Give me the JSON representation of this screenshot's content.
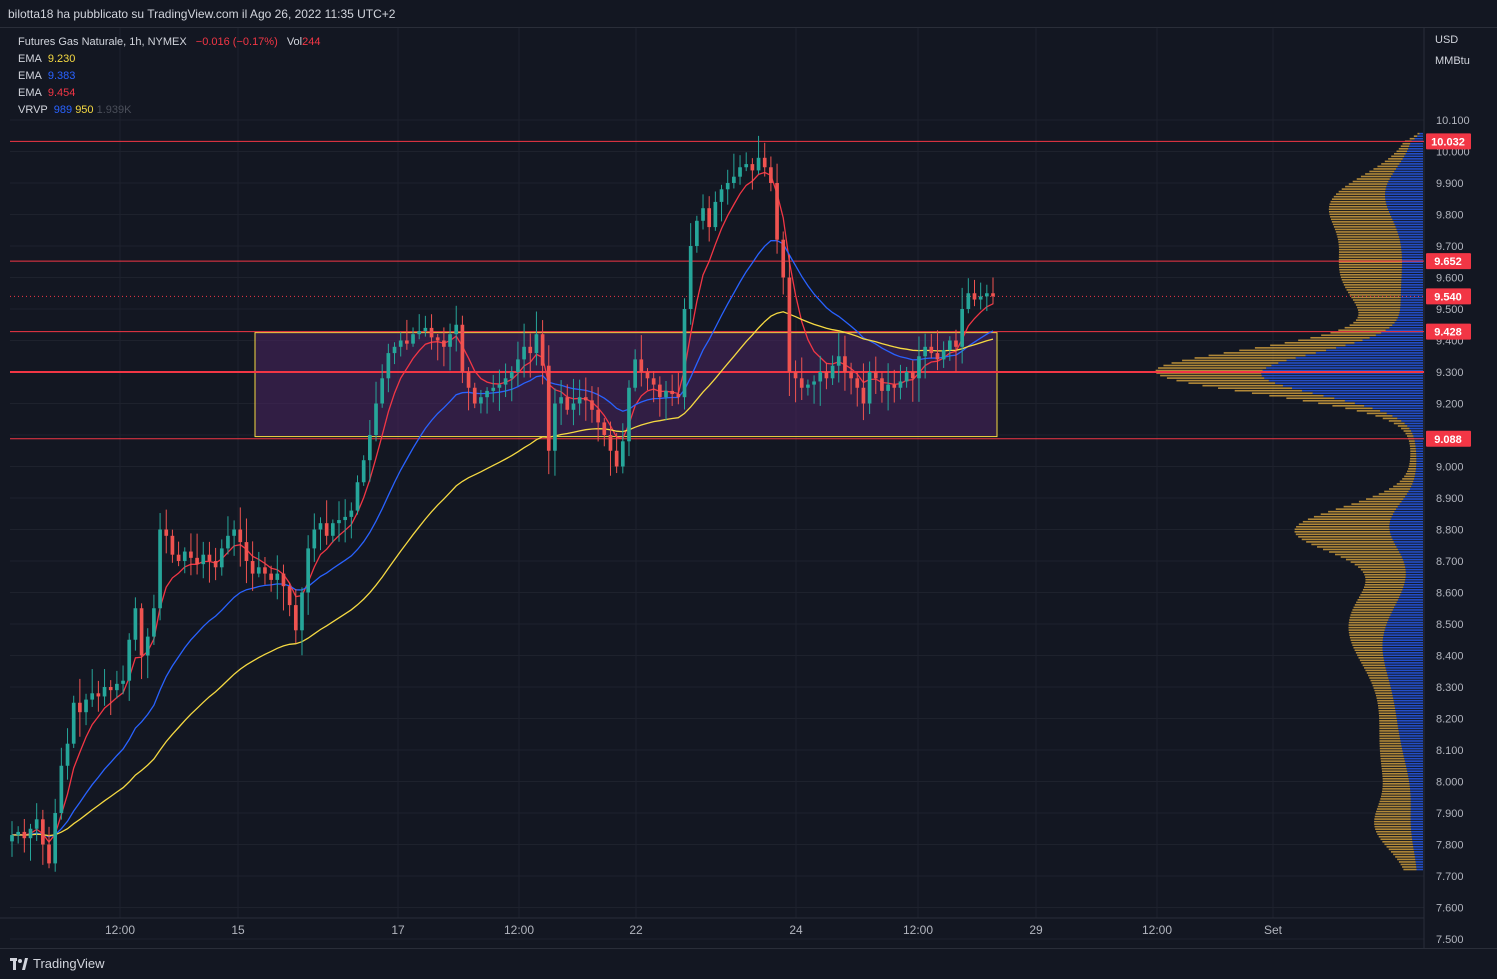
{
  "header": {
    "publish_text": "bilotta18 ha pubblicato su TradingView.com il Ago 26, 2022 11:35 UTC+2"
  },
  "legend": {
    "symbol": "Futures Gas Naturale, 1h, NYMEX",
    "change": "−0.016 (−0.17%)",
    "vol_label": "Vol",
    "vol_value": "244",
    "ema_label": "EMA",
    "ema1": "9.230",
    "ema2": "9.383",
    "ema3": "9.454",
    "vrvp_label": "VRVP",
    "vrvp1": "989",
    "vrvp2": "950",
    "vrvp3": "1.939K"
  },
  "axis": {
    "currency": "USD",
    "unit": "MMBtu"
  },
  "footer": {
    "brand": "TradingView"
  },
  "colors": {
    "background": "#131722",
    "up": "#26a69a",
    "down": "#ef5350",
    "ema_yellow": "#f5d942",
    "ema_blue": "#2962ff",
    "ema_red": "#f23645",
    "zone_fill": "#4a2460",
    "zone_border": "#f5d942",
    "hline": "#f23645"
  },
  "chart_data": {
    "type": "candlestick",
    "title": "Futures Gas Naturale, 1h, NYMEX",
    "ylim": [
      7.45,
      10.32
    ],
    "y_ticks": [
      "7.500",
      "7.600",
      "7.700",
      "7.800",
      "7.900",
      "8.000",
      "8.100",
      "8.200",
      "8.300",
      "8.400",
      "8.500",
      "8.600",
      "8.700",
      "8.800",
      "8.900",
      "9.000",
      "9.100",
      "9.200",
      "9.300",
      "9.400",
      "9.500",
      "9.600",
      "9.700",
      "9.800",
      "9.900",
      "10.000",
      "10.100"
    ],
    "x_labels": [
      "12:00",
      "15",
      "17",
      "12:00",
      "22",
      "24",
      "12:00",
      "29",
      "12:00",
      "Set"
    ],
    "price_labels": [
      {
        "value": 10.032,
        "text": "10.032"
      },
      {
        "value": 9.652,
        "text": "9.652"
      },
      {
        "value": 9.54,
        "text": "9.540"
      },
      {
        "value": 9.428,
        "text": "9.428"
      },
      {
        "value": 9.088,
        "text": "9.088"
      }
    ],
    "horizontal_lines": [
      10.032,
      9.652,
      9.428,
      9.3,
      9.088
    ],
    "last_price": 9.54,
    "zone": {
      "from_bar": 61,
      "to_bar": 247,
      "low": 9.095,
      "high": 9.425
    },
    "closes": [
      7.83,
      7.84,
      7.82,
      7.85,
      7.88,
      7.8,
      7.74,
      7.9,
      8.05,
      8.12,
      8.25,
      8.22,
      8.26,
      8.28,
      8.27,
      8.3,
      8.29,
      8.31,
      8.32,
      8.45,
      8.55,
      8.4,
      8.46,
      8.55,
      8.8,
      8.78,
      8.72,
      8.7,
      8.73,
      8.71,
      8.69,
      8.72,
      8.7,
      8.68,
      8.74,
      8.78,
      8.8,
      8.76,
      8.7,
      8.66,
      8.68,
      8.66,
      8.64,
      8.66,
      8.62,
      8.56,
      8.48,
      8.6,
      8.74,
      8.8,
      8.82,
      8.78,
      8.82,
      8.83,
      8.84,
      8.86,
      8.95,
      9.02,
      9.1,
      9.2,
      9.28,
      9.36,
      9.38,
      9.4,
      9.39,
      9.42,
      9.43,
      9.44,
      9.41,
      9.4,
      9.38,
      9.42,
      9.45,
      9.3,
      9.25,
      9.2,
      9.22,
      9.24,
      9.25,
      9.26,
      9.28,
      9.3,
      9.34,
      9.38,
      9.36,
      9.42,
      9.32,
      9.05,
      9.2,
      9.22,
      9.18,
      9.2,
      9.22,
      9.21,
      9.18,
      9.14,
      9.1,
      9.05,
      9.0,
      9.08,
      9.25,
      9.34,
      9.3,
      9.28,
      9.26,
      9.22,
      9.24,
      9.23,
      9.22,
      9.5,
      9.7,
      9.78,
      9.82,
      9.76,
      9.84,
      9.88,
      9.9,
      9.92,
      9.95,
      9.96,
      9.94,
      9.98,
      9.95,
      9.9,
      9.72,
      9.6,
      9.3,
      9.28,
      9.25,
      9.26,
      9.27,
      9.3,
      9.28,
      9.32,
      9.35,
      9.3,
      9.28,
      9.25,
      9.2,
      9.3,
      9.28,
      9.24,
      9.26,
      9.25,
      9.27,
      9.3,
      9.28,
      9.35,
      9.38,
      9.36,
      9.34,
      9.37,
      9.4,
      9.38,
      9.5,
      9.55,
      9.53,
      9.54,
      9.55,
      9.54
    ]
  }
}
